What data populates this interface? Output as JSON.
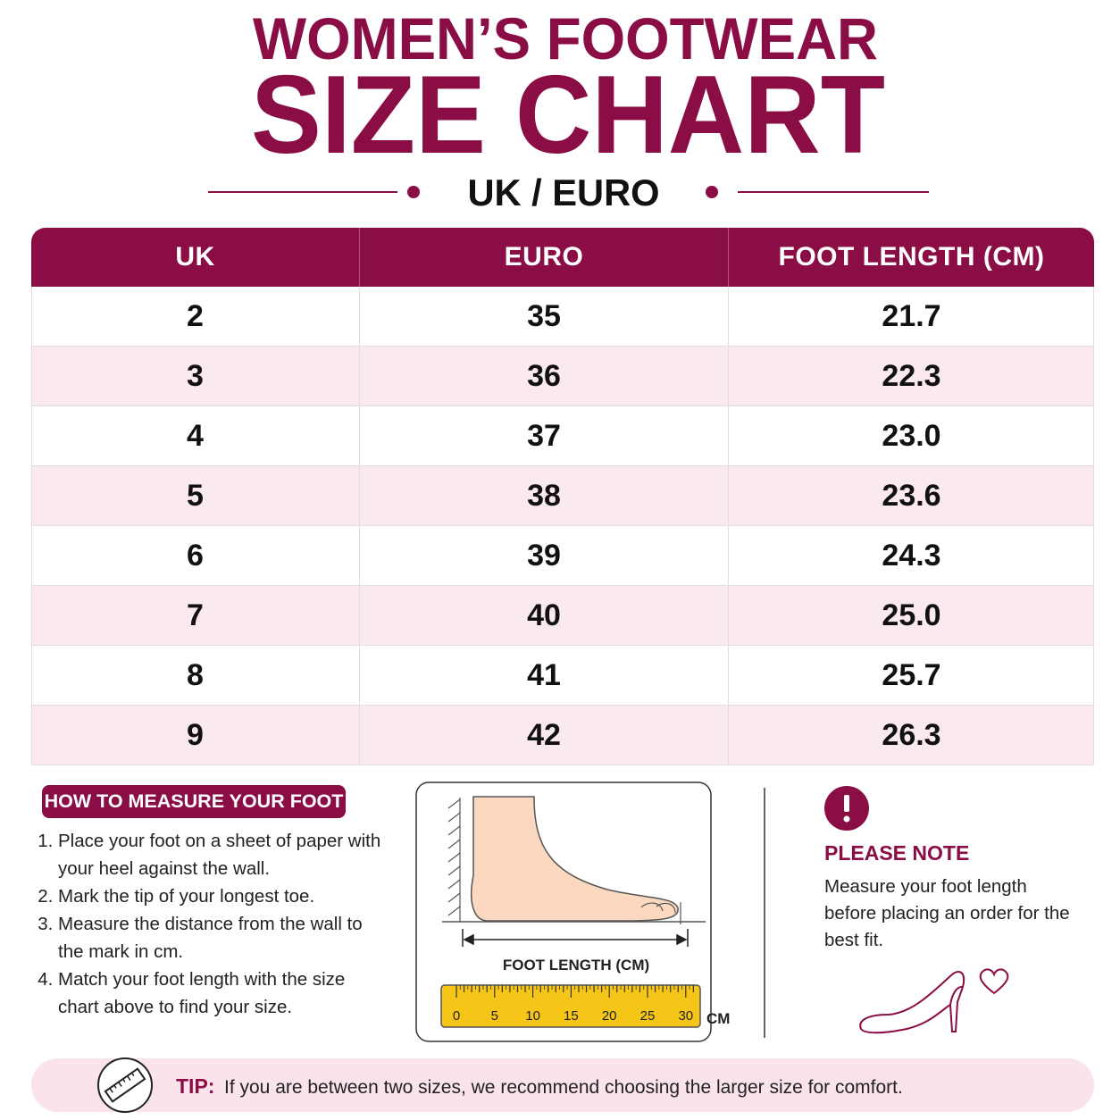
{
  "header": {
    "line1": "WOMEN’S FOOTWEAR",
    "line2": "SIZE CHART",
    "subtitle": "UK / EURO"
  },
  "table": {
    "columns": [
      "UK",
      "EURO",
      "FOOT LENGTH (CM)"
    ],
    "rows": [
      [
        "2",
        "35",
        "21.7"
      ],
      [
        "3",
        "36",
        "22.3"
      ],
      [
        "4",
        "37",
        "23.0"
      ],
      [
        "5",
        "38",
        "23.6"
      ],
      [
        "6",
        "39",
        "24.3"
      ],
      [
        "7",
        "40",
        "25.0"
      ],
      [
        "8",
        "41",
        "25.7"
      ],
      [
        "9",
        "42",
        "26.3"
      ]
    ]
  },
  "measure": {
    "title": "HOW TO MEASURE YOUR FOOT",
    "steps": [
      "Place your foot on a sheet of paper with your heel against the wall.",
      "Mark the tip of your longest toe.",
      "Measure the distance from the wall to the mark in cm.",
      "Match your foot length with the size chart above to find your size."
    ]
  },
  "diagram": {
    "label": "FOOT LENGTH (CM)",
    "ruler_labels": [
      "0",
      "5",
      "10",
      "15",
      "20",
      "25",
      "30"
    ],
    "unit": "CM"
  },
  "note": {
    "title": "PLEASE NOTE",
    "text": "Measure your foot length before placing an order for the best fit."
  },
  "tip": {
    "label": "TIP:",
    "text": "If you are between two sizes, we recommend choosing the larger size for comfort."
  }
}
